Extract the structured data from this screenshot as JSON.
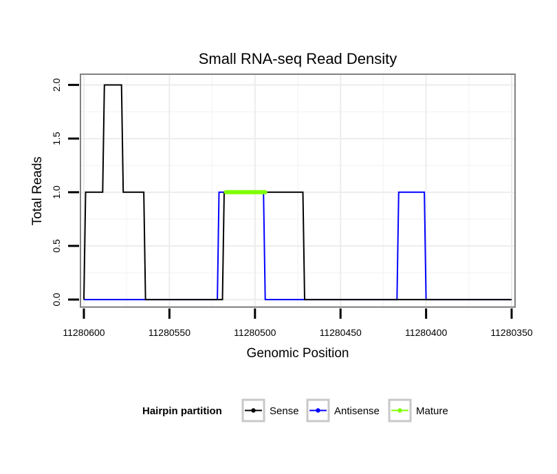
{
  "chart_data": {
    "type": "line",
    "title": "Small RNA-seq Read Density",
    "xlabel": "Genomic Position",
    "ylabel": "Total Reads",
    "xlim": [
      11280602,
      11280348
    ],
    "x_reversed": true,
    "ylim": [
      -0.07,
      2.1
    ],
    "x_ticks": [
      11280600,
      11280550,
      11280500,
      11280450,
      11280400,
      11280350
    ],
    "x_tick_labels": [
      "11280600",
      "11280550",
      "11280500",
      "11280450",
      "11280400",
      "11280350"
    ],
    "y_ticks": [
      0.0,
      0.5,
      1.0,
      1.5,
      2.0
    ],
    "y_tick_labels": [
      "0.0",
      "0.5",
      "1.0",
      "1.5",
      "2.0"
    ],
    "grid": true,
    "legend": {
      "title": "Hairpin partition",
      "position": "bottom",
      "entries": [
        "Sense",
        "Antisense",
        "Mature"
      ]
    },
    "series": [
      {
        "name": "Antisense",
        "color": "#0000ff",
        "x": [
          11280600,
          11280522,
          11280521,
          11280506,
          11280505,
          11280495,
          11280494,
          11280417,
          11280416,
          11280401,
          11280400,
          11280350
        ],
        "y": [
          0,
          0,
          1,
          1,
          1,
          1,
          0,
          0,
          1,
          1,
          0,
          0
        ]
      },
      {
        "name": "Sense",
        "color": "#000000",
        "x": [
          11280600,
          11280599,
          11280589,
          11280588,
          11280578,
          11280577,
          11280565,
          11280564,
          11280519,
          11280518,
          11280472,
          11280471,
          11280350
        ],
        "y": [
          0,
          1,
          1,
          2,
          2,
          1,
          1,
          0,
          0,
          1,
          1,
          0,
          0
        ]
      },
      {
        "name": "Mature",
        "color": "#7fff00",
        "x": [
          11280517,
          11280494
        ],
        "y": [
          1,
          1
        ]
      }
    ]
  }
}
